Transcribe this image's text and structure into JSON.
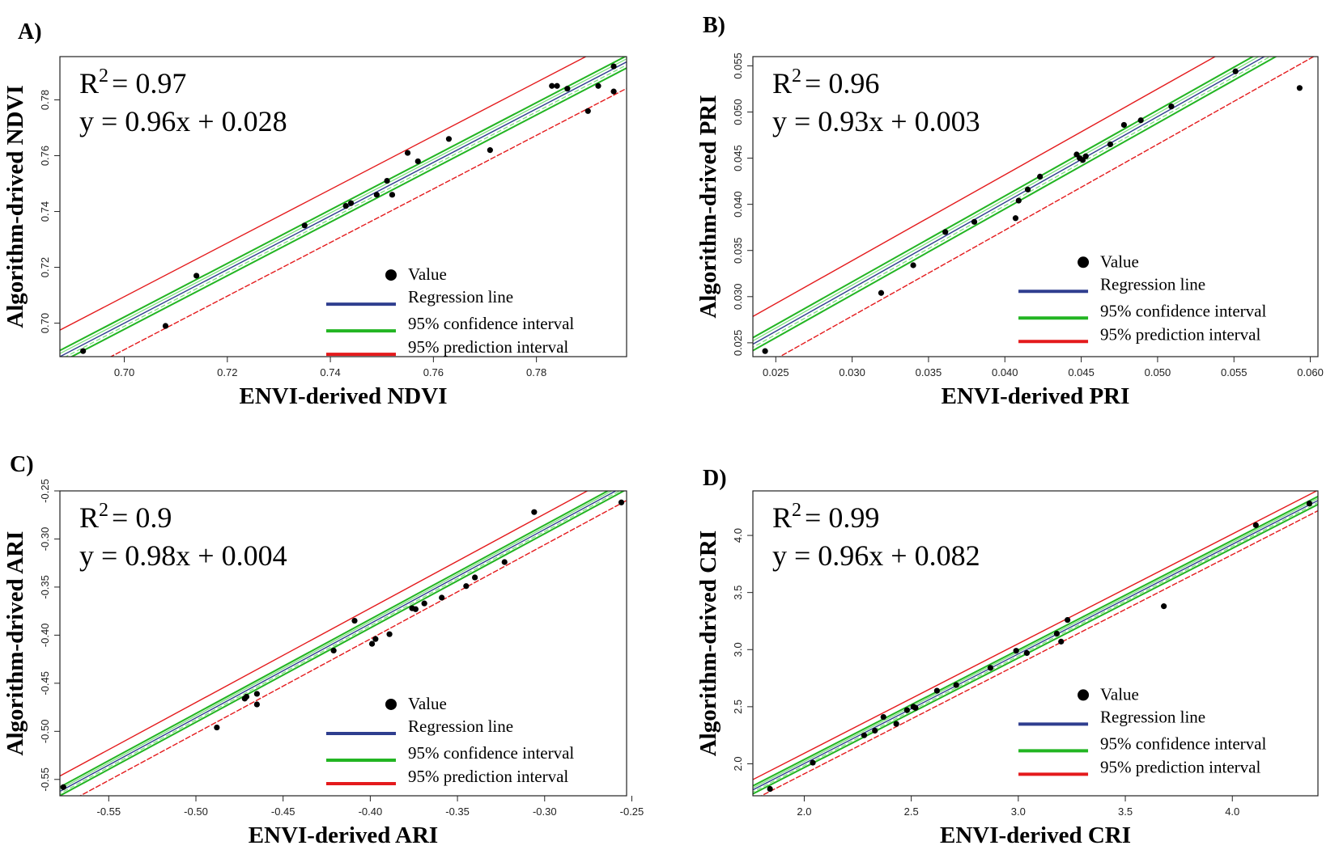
{
  "colors": {
    "point": "#000000",
    "regression": "#2f3e8f",
    "confidence": "#22b522",
    "confidence_light": "#7fe07f",
    "prediction": "#e41a1c",
    "frame": "#222222"
  },
  "legend": {
    "value": "Value",
    "regression": "Regression line",
    "confidence": "95% confidence interval",
    "prediction": "95% prediction interval"
  },
  "chart_data": [
    {
      "type": "scatter",
      "panel": "A)",
      "r2_value": "= 0.97",
      "equation": "y = 0.96x + 0.028",
      "xlabel": "ENVI-derived NDVI",
      "ylabel": "Algorithm-drived NDVI",
      "xlim": [
        0.6875,
        0.7975
      ],
      "ylim": [
        0.688,
        0.7955
      ],
      "xticks": [
        0.7,
        0.72,
        0.74,
        0.76,
        0.78
      ],
      "yticks": [
        0.7,
        0.72,
        0.74,
        0.76,
        0.78
      ],
      "tick_labels_x": [
        "0.70",
        "0.72",
        "0.74",
        "0.76",
        "0.78"
      ],
      "tick_labels_y": [
        "0.70",
        "0.72",
        "0.74",
        "0.76",
        "0.78"
      ],
      "legend_y": 0.7155,
      "x": [
        0.692,
        0.708,
        0.714,
        0.735,
        0.743,
        0.744,
        0.749,
        0.751,
        0.752,
        0.755,
        0.757,
        0.763,
        0.771,
        0.783,
        0.784,
        0.786,
        0.79,
        0.792,
        0.795,
        0.795
      ],
      "y": [
        0.69,
        0.699,
        0.717,
        0.735,
        0.742,
        0.743,
        0.746,
        0.751,
        0.746,
        0.761,
        0.758,
        0.766,
        0.762,
        0.785,
        0.785,
        0.784,
        0.776,
        0.785,
        0.783,
        0.792
      ],
      "fit": {
        "slope": 0.96,
        "intercept": 0.028
      },
      "ci_width": 0.0022,
      "pi_width": 0.0095
    },
    {
      "type": "scatter",
      "panel": "B)",
      "r2_value": "= 0.96",
      "equation": "y = 0.93x + 0.003",
      "xlabel": "ENVI-derived PRI",
      "ylabel": "Algorithm-drived PRI",
      "xlim": [
        0.0235,
        0.0605
      ],
      "ylim": [
        0.0235,
        0.056
      ],
      "xticks": [
        0.025,
        0.03,
        0.035,
        0.04,
        0.045,
        0.05,
        0.055,
        0.06
      ],
      "yticks": [
        0.025,
        0.03,
        0.035,
        0.04,
        0.045,
        0.05,
        0.055
      ],
      "tick_labels_x": [
        "0.025",
        "0.030",
        "0.035",
        "0.040",
        "0.045",
        "0.050",
        "0.055",
        "0.060"
      ],
      "tick_labels_y": [
        "0.025",
        "0.030",
        "0.035",
        "0.040",
        "0.045",
        "0.050",
        "0.055"
      ],
      "legend_y": 0.0332,
      "x": [
        0.0243,
        0.0319,
        0.034,
        0.0361,
        0.038,
        0.0407,
        0.0409,
        0.0415,
        0.0423,
        0.0447,
        0.0449,
        0.0451,
        0.0453,
        0.0469,
        0.0478,
        0.0489,
        0.0509,
        0.0551,
        0.0593
      ],
      "y": [
        0.0241,
        0.0304,
        0.0334,
        0.037,
        0.0381,
        0.0385,
        0.0404,
        0.0416,
        0.043,
        0.0454,
        0.045,
        0.0448,
        0.0452,
        0.0465,
        0.0486,
        0.0491,
        0.0506,
        0.0544,
        0.0526
      ],
      "fit": {
        "slope": 0.93,
        "intercept": 0.003
      },
      "ci_width": 0.0007,
      "pi_width": 0.003
    },
    {
      "type": "scatter",
      "panel": "C)",
      "r2_value": "= 0.9",
      "equation": "y = 0.98x + 0.004",
      "xlabel": "ENVI-derived ARI",
      "ylabel": "Algorithm-drived ARI",
      "xlim": [
        -0.578,
        -0.253
      ],
      "ylim": [
        -0.567,
        -0.25
      ],
      "xticks": [
        -0.55,
        -0.5,
        -0.45,
        -0.4,
        -0.35,
        -0.3,
        -0.25
      ],
      "yticks": [
        -0.55,
        -0.5,
        -0.45,
        -0.4,
        -0.35,
        -0.3,
        -0.25
      ],
      "tick_labels_x": [
        "-0.55",
        "-0.50",
        "-0.45",
        "-0.40",
        "-0.35",
        "-0.30",
        "-0.25"
      ],
      "tick_labels_y": [
        "-0.55",
        "-0.50",
        "-0.45",
        "-0.40",
        "-0.35",
        "-0.30",
        "-0.25"
      ],
      "legend_y": -0.477,
      "x": [
        -0.576,
        -0.488,
        -0.472,
        -0.471,
        -0.465,
        -0.465,
        -0.421,
        -0.409,
        -0.399,
        -0.397,
        -0.389,
        -0.376,
        -0.374,
        -0.369,
        -0.359,
        -0.345,
        -0.34,
        -0.323,
        -0.306,
        -0.256
      ],
      "y": [
        -0.558,
        -0.496,
        -0.466,
        -0.464,
        -0.461,
        -0.472,
        -0.416,
        -0.385,
        -0.409,
        -0.404,
        -0.399,
        -0.372,
        -0.373,
        -0.367,
        -0.361,
        -0.349,
        -0.34,
        -0.324,
        -0.272,
        -0.262
      ],
      "fit": {
        "slope": 0.98,
        "intercept": 0.004
      },
      "ci_width": 0.0045,
      "pi_width": 0.016
    },
    {
      "type": "scatter",
      "panel": "D)",
      "r2_value": "= 0.99",
      "equation": "y = 0.96x + 0.082",
      "xlabel": "ENVI-derived CRI",
      "ylabel": "Algorithm-drived CRI",
      "xlim": [
        1.76,
        4.4
      ],
      "ylim": [
        1.72,
        4.39
      ],
      "xticks": [
        2.0,
        2.5,
        3.0,
        3.5,
        4.0
      ],
      "yticks": [
        2.0,
        2.5,
        3.0,
        3.5,
        4.0
      ],
      "tick_labels_x": [
        "2.0",
        "2.5",
        "3.0",
        "3.5",
        "4.0"
      ],
      "tick_labels_y": [
        "2.0",
        "2.5",
        "3.0",
        "3.5",
        "4.0"
      ],
      "legend_y": 2.56,
      "x": [
        1.84,
        2.04,
        2.28,
        2.33,
        2.37,
        2.43,
        2.48,
        2.51,
        2.52,
        2.62,
        2.71,
        2.87,
        2.99,
        3.04,
        3.18,
        3.2,
        3.23,
        3.68,
        4.11,
        4.36
      ],
      "y": [
        1.78,
        2.01,
        2.25,
        2.29,
        2.41,
        2.35,
        2.47,
        2.5,
        2.49,
        2.64,
        2.69,
        2.84,
        2.99,
        2.97,
        3.14,
        3.07,
        3.26,
        3.38,
        4.09,
        4.28
      ],
      "fit": {
        "slope": 0.96,
        "intercept": 0.082
      },
      "ci_width": 0.035,
      "pi_width": 0.09
    }
  ]
}
